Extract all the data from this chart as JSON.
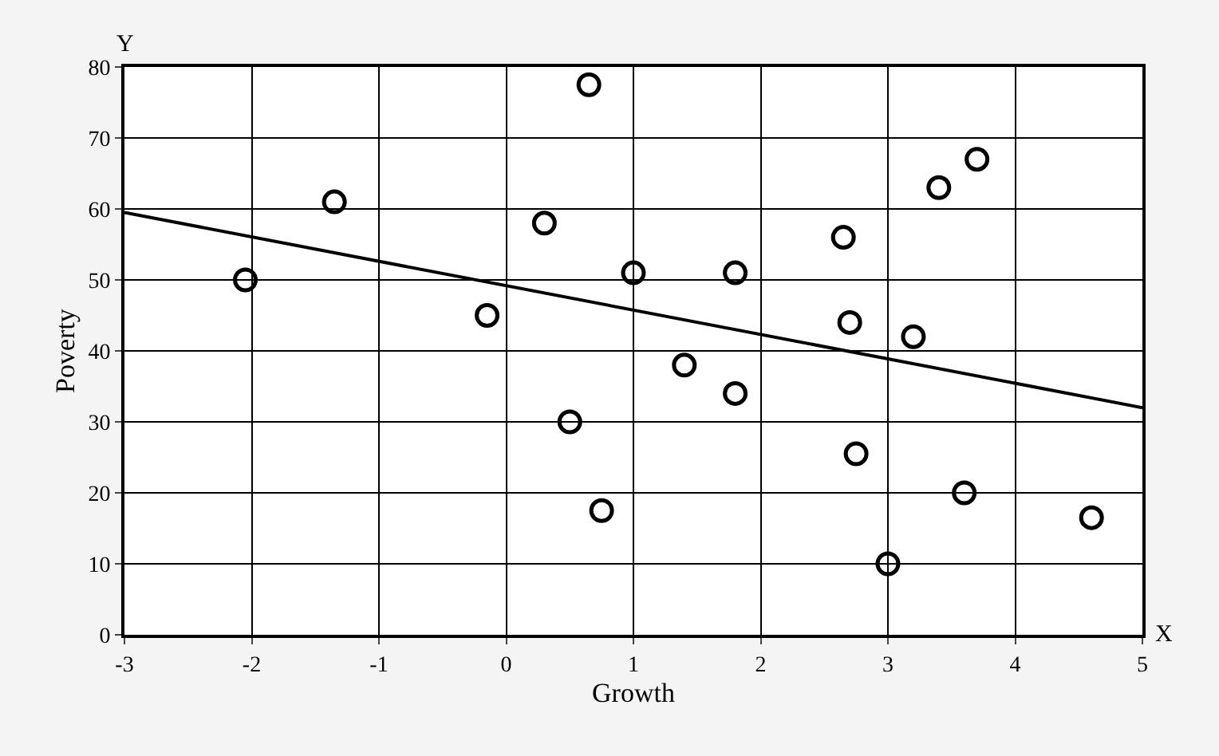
{
  "chart_data": {
    "type": "scatter",
    "xlabel": "Growth",
    "ylabel": "Poverty",
    "annotations": [
      "Y",
      "X"
    ],
    "xlim": [
      -3,
      5
    ],
    "ylim": [
      0,
      80
    ],
    "xticks": [
      -3,
      -2,
      -1,
      0,
      1,
      2,
      3,
      4,
      5
    ],
    "yticks": [
      0,
      10,
      20,
      30,
      40,
      50,
      60,
      70,
      80
    ],
    "grid": true,
    "series": [
      {
        "color": "#000000",
        "marker": "circle",
        "x": [
          -2.05,
          -1.35,
          -0.15,
          0.3,
          0.65,
          0.5,
          0.75,
          1.0,
          1.4,
          1.8,
          1.8,
          2.65,
          2.7,
          2.75,
          3.2,
          3.0,
          3.4,
          3.7,
          3.6,
          4.6
        ],
        "values": [
          50,
          61,
          45,
          58,
          77.5,
          30,
          17.5,
          51,
          38,
          51,
          34,
          56,
          44,
          25.5,
          42,
          10,
          63,
          67,
          20,
          16.5
        ]
      },
      {
        "type": "line",
        "marker": "none",
        "color": "#000000",
        "x": [
          -3,
          5
        ],
        "values": [
          59.5,
          32
        ]
      }
    ]
  }
}
